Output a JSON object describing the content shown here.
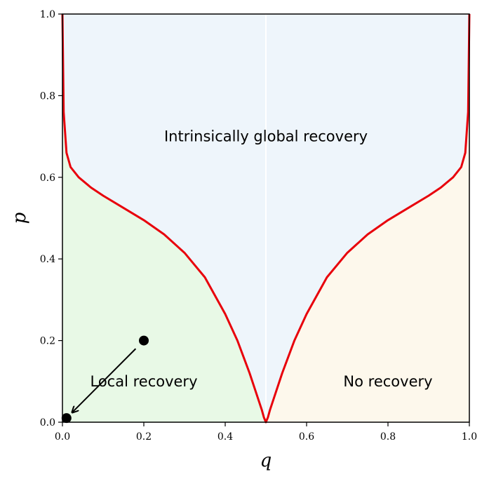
{
  "chart_data": {
    "type": "line",
    "title": "",
    "xlabel": "q",
    "ylabel": "p",
    "xlim": [
      0.0,
      1.0
    ],
    "ylim": [
      0.0,
      1.0
    ],
    "x_ticks": [
      "0.0",
      "0.2",
      "0.4",
      "0.6",
      "0.8",
      "1.0"
    ],
    "y_ticks": [
      "0.0",
      "0.2",
      "0.4",
      "0.6",
      "0.8",
      "1.0"
    ],
    "grid": false,
    "legend": "none",
    "colors": {
      "boundary": "#e8000b",
      "global_region": "#eef5fb",
      "local_region": "#e8f9e6",
      "no_recovery_region": "#fdf8ec",
      "markers": "#000000"
    },
    "boundary_curve": {
      "x": [
        0.0,
        0.003,
        0.01,
        0.02,
        0.04,
        0.07,
        0.1,
        0.15,
        0.2,
        0.25,
        0.3,
        0.35,
        0.4,
        0.43,
        0.46,
        0.48,
        0.49,
        0.495,
        0.5,
        0.505,
        0.51,
        0.52,
        0.54,
        0.57,
        0.6,
        0.65,
        0.7,
        0.75,
        0.8,
        0.85,
        0.9,
        0.93,
        0.96,
        0.98,
        0.99,
        0.997,
        1.0
      ],
      "y": [
        1.0,
        0.76,
        0.66,
        0.625,
        0.6,
        0.575,
        0.555,
        0.525,
        0.495,
        0.46,
        0.415,
        0.355,
        0.265,
        0.2,
        0.12,
        0.06,
        0.03,
        0.012,
        0.0,
        0.012,
        0.03,
        0.06,
        0.12,
        0.2,
        0.265,
        0.355,
        0.415,
        0.46,
        0.495,
        0.525,
        0.555,
        0.575,
        0.6,
        0.625,
        0.66,
        0.76,
        1.0
      ]
    },
    "points": [
      {
        "x": 0.2,
        "y": 0.2
      },
      {
        "x": 0.01,
        "y": 0.01
      }
    ],
    "arrow": {
      "from": [
        0.18,
        0.18
      ],
      "to": [
        0.025,
        0.025
      ]
    },
    "annotations": [
      {
        "text": "Intrinsically global recovery",
        "x": 0.5,
        "y": 0.7
      },
      {
        "text": "Local recovery",
        "x": 0.2,
        "y": 0.1
      },
      {
        "text": "No recovery",
        "x": 0.8,
        "y": 0.1
      }
    ]
  }
}
